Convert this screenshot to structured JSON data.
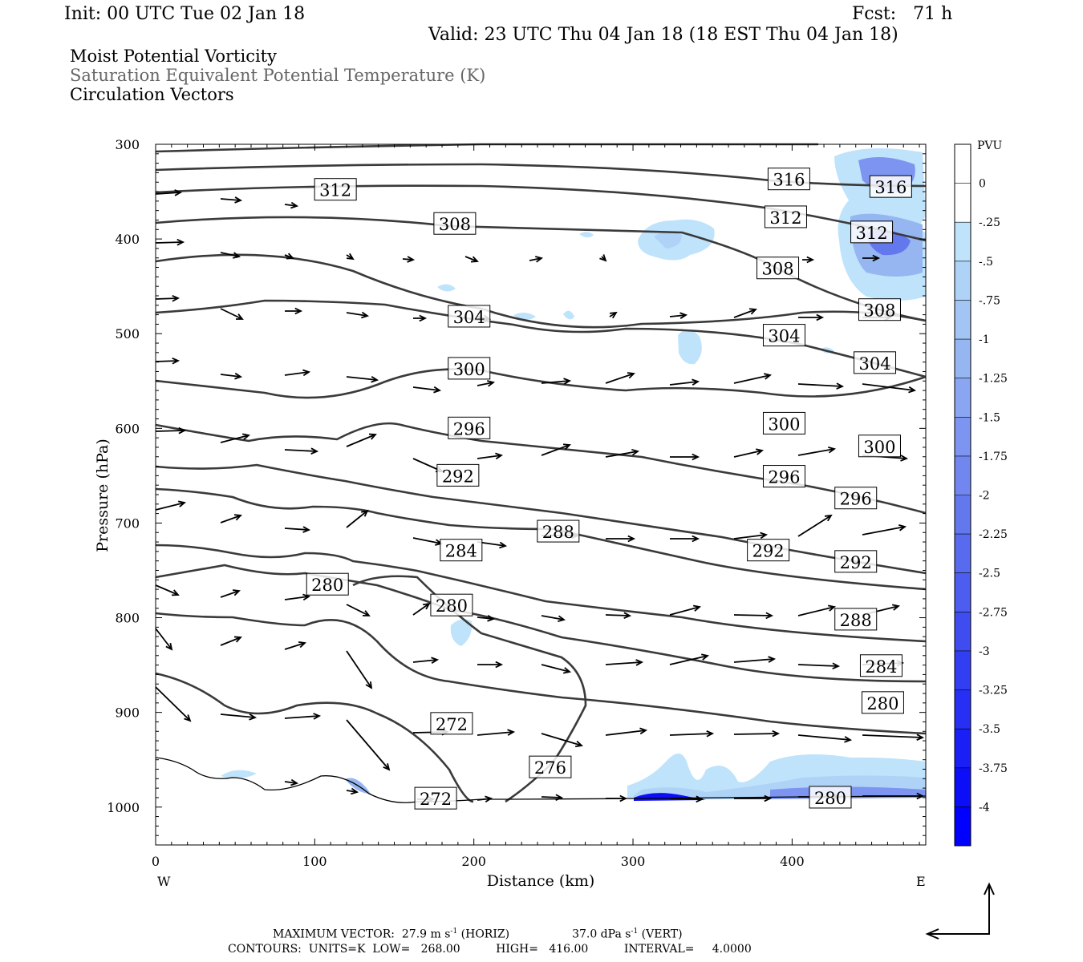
{
  "header": {
    "init": "Init: 00 UTC Tue 02 Jan 18",
    "fcst": "Fcst:   71 h",
    "valid": "Valid: 23 UTC Thu 04 Jan 18 (18 EST Thu 04 Jan 18)",
    "field1": "Moist Potential Vorticity",
    "field2": "Saturation Equivalent Potential Temperature (K)",
    "field3": "Circulation Vectors"
  },
  "footer": {
    "line1_a": "MAXIMUM VECTOR:  27.9 m s",
    "line1_b": " (HORIZ)",
    "line1_c": "37.0 dPa s",
    "line1_d": " (VERT)",
    "sup": "-1",
    "line2": "CONTOURS:  UNITS=K  LOW=   268.00          HIGH=   416.00          INTERVAL=     4.0000"
  },
  "colors": {
    "contour": "#3a3a3a",
    "boundary": "#000000",
    "pv_levels": [
      "#ffffff",
      "#ffffff",
      "#bfe3fb",
      "#aed3f7",
      "#a2c5f4",
      "#96b6f2",
      "#8aa5f1",
      "#7d95f0",
      "#7186ef",
      "#6478ee",
      "#586bee",
      "#4c5def",
      "#3f4df0",
      "#323ef2",
      "#262ff3",
      "#1a20f5",
      "#0d0ef8",
      "#0000ff"
    ]
  },
  "chart_data": {
    "type": "contour",
    "xlabel": "Distance (km)",
    "ylabel": "Pressure (hPa)",
    "xlim": [
      0,
      484
    ],
    "ylim": [
      1040,
      300
    ],
    "x_ticks": [
      "0",
      "100",
      "200",
      "300",
      "400"
    ],
    "x_tick_values": [
      0,
      100,
      200,
      300,
      400
    ],
    "x_end_labels": {
      "left": "W",
      "right": "E"
    },
    "y_ticks": [
      "300",
      "400",
      "500",
      "600",
      "700",
      "800",
      "900",
      "1000"
    ],
    "y_tick_values": [
      300,
      400,
      500,
      600,
      700,
      800,
      900,
      1000
    ],
    "colorbar": {
      "title": "PVU",
      "labels": [
        "0",
        "-.25",
        "-.5",
        "-.75",
        "-1",
        "-1.25",
        "-1.5",
        "-1.75",
        "-2",
        "-2.25",
        "-2.5",
        "-2.75",
        "-3",
        "-3.25",
        "-3.5",
        "-3.75",
        "-4"
      ]
    },
    "contour_labels": [
      {
        "text": "316",
        "x": 398,
        "p": 337
      },
      {
        "text": "316",
        "x": 462,
        "p": 345
      },
      {
        "text": "312",
        "x": 113,
        "p": 348
      },
      {
        "text": "312",
        "x": 396,
        "p": 377
      },
      {
        "text": "312",
        "x": 450,
        "p": 393
      },
      {
        "text": "308",
        "x": 188,
        "p": 384
      },
      {
        "text": "308",
        "x": 391,
        "p": 431
      },
      {
        "text": "308",
        "x": 455,
        "p": 475
      },
      {
        "text": "304",
        "x": 197,
        "p": 482
      },
      {
        "text": "304",
        "x": 395,
        "p": 502
      },
      {
        "text": "304",
        "x": 452,
        "p": 531
      },
      {
        "text": "300",
        "x": 197,
        "p": 537
      },
      {
        "text": "300",
        "x": 395,
        "p": 595
      },
      {
        "text": "300",
        "x": 455,
        "p": 619
      },
      {
        "text": "296",
        "x": 197,
        "p": 600
      },
      {
        "text": "296",
        "x": 395,
        "p": 651
      },
      {
        "text": "296",
        "x": 440,
        "p": 674
      },
      {
        "text": "292",
        "x": 190,
        "p": 650
      },
      {
        "text": "292",
        "x": 385,
        "p": 729
      },
      {
        "text": "292",
        "x": 440,
        "p": 741
      },
      {
        "text": "288",
        "x": 253,
        "p": 709
      },
      {
        "text": "288",
        "x": 440,
        "p": 802
      },
      {
        "text": "284",
        "x": 192,
        "p": 729
      },
      {
        "text": "284",
        "x": 456,
        "p": 851
      },
      {
        "text": "280",
        "x": 108,
        "p": 765
      },
      {
        "text": "280",
        "x": 186,
        "p": 787
      },
      {
        "text": "280",
        "x": 457,
        "p": 890
      },
      {
        "text": "276",
        "x": 248,
        "p": 958
      },
      {
        "text": "272",
        "x": 186,
        "p": 912
      },
      {
        "text": "272",
        "x": 176,
        "p": 991
      },
      {
        "text": "280",
        "x": 424,
        "p": 990
      }
    ]
  }
}
